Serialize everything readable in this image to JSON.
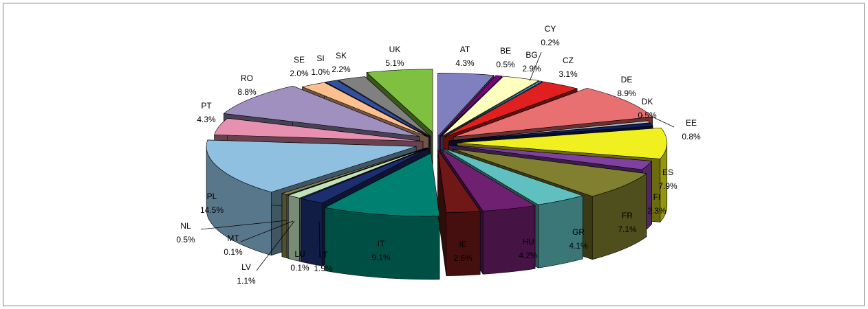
{
  "chart_data": {
    "type": "pie",
    "style": "3d-exploded",
    "title": "",
    "categories": [
      "AT",
      "BE",
      "BG",
      "CY",
      "CZ",
      "DE",
      "DK",
      "EE",
      "ES",
      "FI",
      "FR",
      "GR",
      "HU",
      "IE",
      "IT",
      "LT",
      "LU",
      "LV",
      "MT",
      "NL",
      "PL",
      "PT",
      "RO",
      "SE",
      "SI",
      "SK",
      "UK"
    ],
    "values": [
      4.3,
      0.5,
      2.9,
      0.2,
      3.1,
      8.9,
      0.5,
      0.8,
      7.9,
      2.3,
      7.1,
      4.1,
      4.2,
      2.6,
      9.1,
      1.9,
      0.1,
      1.1,
      0.1,
      0.5,
      14.5,
      4.3,
      8.8,
      2.0,
      1.0,
      2.2,
      5.1
    ],
    "labels": [
      "4.3%",
      "0.5%",
      "2.9%",
      "0.2%",
      "3.1%",
      "8.9%",
      "0.5%",
      "0.8%",
      "7.9%",
      "2.3%",
      "7.1%",
      "4.1%",
      "4.2%",
      "2.6%",
      "9.1%",
      "1.9%",
      "0.1%",
      "1.1%",
      "0.1%",
      "0.5%",
      "14.5%",
      "4.3%",
      "8.8%",
      "2.0%",
      "1.0%",
      "2.2%",
      "5.1%"
    ],
    "colors": [
      "#8080c0",
      "#800080",
      "#ffffc0",
      "#40c0ff",
      "#e02020",
      "#e87070",
      "#c0c0c0",
      "#102060",
      "#f0f020",
      "#8040a0",
      "#808030",
      "#60c0c0",
      "#702070",
      "#701818",
      "#008070",
      "#1c2e70",
      "#c0e0e0",
      "#c0e0c0",
      "#ffffe0",
      "#808050",
      "#90c0e0",
      "#e890b0",
      "#a090c0",
      "#ffc090",
      "#3050a0",
      "#808080",
      "#80c040"
    ]
  }
}
